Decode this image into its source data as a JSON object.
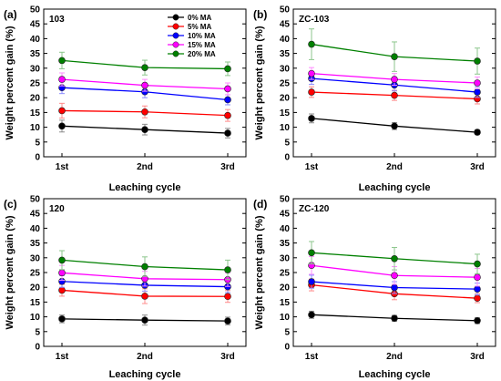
{
  "chart_data": [
    {
      "type": "line",
      "panel_label": "(a)",
      "title": "103",
      "xlabel": "Leaching cycle",
      "ylabel": "Weight percent gain (%)",
      "categories": [
        "1st",
        "2nd",
        "3rd"
      ],
      "ylim": [
        0,
        50
      ],
      "yticks": [
        0,
        5,
        10,
        15,
        20,
        25,
        30,
        35,
        40,
        45,
        50
      ],
      "legend": "top-center",
      "series": [
        {
          "name": "0% MA",
          "color": "#000000",
          "values": [
            10.4,
            9.2,
            8.0
          ],
          "errors": [
            2.0,
            1.8,
            1.6
          ]
        },
        {
          "name": "5% MA",
          "color": "#ff0000",
          "values": [
            15.6,
            15.2,
            14.0
          ],
          "errors": [
            2.5,
            2.0,
            2.0
          ]
        },
        {
          "name": "10% MA",
          "color": "#0000ff",
          "values": [
            23.4,
            22.0,
            19.3
          ],
          "errors": [
            2.0,
            2.0,
            1.7
          ]
        },
        {
          "name": "15% MA",
          "color": "#ff00ff",
          "values": [
            26.2,
            24.2,
            23.0
          ],
          "errors": [
            2.2,
            2.0,
            2.0
          ]
        },
        {
          "name": "20% MA",
          "color": "#008000",
          "values": [
            32.6,
            30.2,
            29.8
          ],
          "errors": [
            2.8,
            2.5,
            2.3
          ]
        }
      ]
    },
    {
      "type": "line",
      "panel_label": "(b)",
      "title": "ZC-103",
      "xlabel": "Leaching cycle",
      "ylabel": "Weight percent gain (%)",
      "categories": [
        "1st",
        "2nd",
        "3rd"
      ],
      "ylim": [
        0,
        50
      ],
      "yticks": [
        0,
        5,
        10,
        15,
        20,
        25,
        30,
        35,
        40,
        45,
        50
      ],
      "series": [
        {
          "name": "0% MA",
          "color": "#000000",
          "values": [
            13.0,
            10.4,
            8.3
          ],
          "errors": [
            1.5,
            1.2,
            0.8
          ]
        },
        {
          "name": "5% MA",
          "color": "#ff0000",
          "values": [
            21.9,
            20.8,
            19.6
          ],
          "errors": [
            1.8,
            1.7,
            1.7
          ]
        },
        {
          "name": "10% MA",
          "color": "#0000ff",
          "values": [
            26.5,
            24.3,
            21.9
          ],
          "errors": [
            2.0,
            2.0,
            1.8
          ]
        },
        {
          "name": "15% MA",
          "color": "#ff00ff",
          "values": [
            28.2,
            26.2,
            25.0
          ],
          "errors": [
            2.0,
            2.0,
            2.0
          ]
        },
        {
          "name": "20% MA",
          "color": "#008000",
          "values": [
            38.1,
            33.9,
            32.4
          ],
          "errors": [
            5.2,
            5.0,
            4.4
          ]
        }
      ]
    },
    {
      "type": "line",
      "panel_label": "(c)",
      "title": "120",
      "xlabel": "Leaching cycle",
      "ylabel": "Weight percent gain (%)",
      "categories": [
        "1st",
        "2nd",
        "3rd"
      ],
      "ylim": [
        0,
        50
      ],
      "yticks": [
        0,
        5,
        10,
        15,
        20,
        25,
        30,
        35,
        40,
        45,
        50
      ],
      "series": [
        {
          "name": "0% MA",
          "color": "#000000",
          "values": [
            9.3,
            8.9,
            8.6
          ],
          "errors": [
            1.3,
            1.7,
            1.3
          ]
        },
        {
          "name": "5% MA",
          "color": "#ff0000",
          "values": [
            19.0,
            17.0,
            16.9
          ],
          "errors": [
            2.0,
            2.5,
            2.0
          ]
        },
        {
          "name": "10% MA",
          "color": "#0000ff",
          "values": [
            22.0,
            20.7,
            20.2
          ],
          "errors": [
            2.0,
            2.0,
            2.0
          ]
        },
        {
          "name": "15% MA",
          "color": "#ff00ff",
          "values": [
            24.9,
            22.9,
            22.6
          ],
          "errors": [
            2.5,
            2.5,
            2.3
          ]
        },
        {
          "name": "20% MA",
          "color": "#008000",
          "values": [
            29.2,
            27.0,
            25.9
          ],
          "errors": [
            3.2,
            3.3,
            3.3
          ]
        }
      ]
    },
    {
      "type": "line",
      "panel_label": "(d)",
      "title": "ZC-120",
      "xlabel": "Leaching cycle",
      "ylabel": "Weight percent gain (%)",
      "categories": [
        "1st",
        "2nd",
        "3rd"
      ],
      "ylim": [
        0,
        50
      ],
      "yticks": [
        0,
        5,
        10,
        15,
        20,
        25,
        30,
        35,
        40,
        45,
        50
      ],
      "series": [
        {
          "name": "0% MA",
          "color": "#000000",
          "values": [
            10.7,
            9.5,
            8.7
          ],
          "errors": [
            1.2,
            1.0,
            1.0
          ]
        },
        {
          "name": "5% MA",
          "color": "#ff0000",
          "values": [
            20.8,
            17.8,
            16.3
          ],
          "errors": [
            2.0,
            2.0,
            1.5
          ]
        },
        {
          "name": "10% MA",
          "color": "#0000ff",
          "values": [
            21.9,
            19.9,
            19.4
          ],
          "errors": [
            2.2,
            2.0,
            2.0
          ]
        },
        {
          "name": "15% MA",
          "color": "#ff00ff",
          "values": [
            27.4,
            24.0,
            23.4
          ],
          "errors": [
            3.0,
            3.0,
            3.0
          ]
        },
        {
          "name": "20% MA",
          "color": "#008000",
          "values": [
            31.7,
            29.7,
            27.9
          ],
          "errors": [
            3.8,
            3.8,
            3.3
          ]
        }
      ]
    }
  ]
}
